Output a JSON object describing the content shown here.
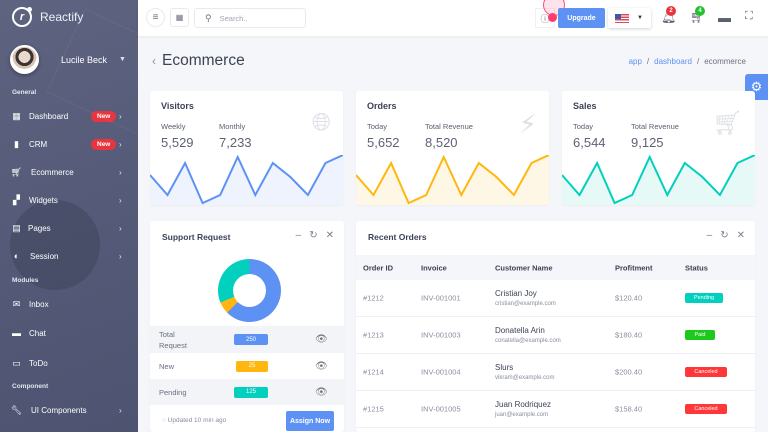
{
  "brand": {
    "name": "Reactify",
    "logo_icon": "reactify-logo-icon"
  },
  "user": {
    "name": "Lucile Beck"
  },
  "sidebar": {
    "sections": [
      {
        "title": "General",
        "items": [
          {
            "label": "Dashboard",
            "icon": "dashboard-icon",
            "badge": "New",
            "arrow": "›"
          },
          {
            "label": "CRM",
            "icon": "crm-icon",
            "badge": "New",
            "arrow": "›"
          },
          {
            "label": "Ecommerce",
            "icon": "cart-icon",
            "badge": "",
            "arrow": "›"
          },
          {
            "label": "Widgets",
            "icon": "widgets-icon",
            "badge": "",
            "arrow": "›"
          },
          {
            "label": "Pages",
            "icon": "pages-icon",
            "badge": "",
            "arrow": "›"
          },
          {
            "label": "Session",
            "icon": "session-icon",
            "badge": "",
            "arrow": "›"
          }
        ]
      },
      {
        "title": "Modules",
        "items": [
          {
            "label": "Inbox",
            "icon": "mail-icon"
          },
          {
            "label": "Chat",
            "icon": "chat-icon"
          },
          {
            "label": "ToDo",
            "icon": "todo-icon"
          }
        ]
      },
      {
        "title": "Component",
        "items": [
          {
            "label": "UI Components",
            "icon": "wrench-icon",
            "arrow": "›"
          }
        ]
      }
    ]
  },
  "topbar": {
    "search_placeholder": "Search..",
    "upgrade_label": "Upgrade",
    "notifications_count": "2",
    "cart_count": "4",
    "colors": {
      "notif_badge": "#e8343e",
      "cart_badge": "#22c22e"
    }
  },
  "page": {
    "title": "Ecommerce",
    "breadcrumb": [
      "app",
      "dashboard",
      "ecommerce"
    ]
  },
  "stats": [
    {
      "title": "Visitors",
      "label1": "Weekly",
      "value1": "5,529",
      "label2": "Monthly",
      "value2": "7,233",
      "icon": "globe-icon",
      "color": "#5d92f4",
      "fill": "#eef3fd"
    },
    {
      "title": "Orders",
      "label1": "Today",
      "value1": "5,652",
      "label2": "Total Revenue",
      "value2": "8,520",
      "icon": "lightning-icon",
      "color": "#ffb70f",
      "fill": "#fff7e6"
    },
    {
      "title": "Sales",
      "label1": "Today",
      "value1": "6,544",
      "label2": "Total Revenue",
      "value2": "9,125",
      "icon": "cart-icon",
      "color": "#00d0bd",
      "fill": "#e6f9f7"
    }
  ],
  "sparkline_points": [
    30,
    10,
    42,
    2,
    10,
    48,
    10,
    42,
    28,
    10,
    42,
    50
  ],
  "support": {
    "title": "Support Request",
    "rows": [
      {
        "label": "Total Request",
        "value": "250",
        "color": "#5d92f4"
      },
      {
        "label": "New",
        "value": "25",
        "color": "#ffb70f"
      },
      {
        "label": "Pending",
        "value": "125",
        "color": "#00d0bd"
      }
    ],
    "updated": "Updated 10 min ago",
    "assign_label": "Assign Now"
  },
  "chart_data": {
    "type": "pie",
    "title": "Support Request",
    "categories": [
      "Total Request",
      "New",
      "Pending"
    ],
    "values": [
      250,
      25,
      125
    ]
  },
  "orders": {
    "title": "Recent Orders",
    "columns": [
      "Order ID",
      "Invoice",
      "Customer Name",
      "Profitment",
      "Status"
    ],
    "rows": [
      {
        "id": "#1212",
        "invoice": "INV-001001",
        "name": "Cristian Joy",
        "email": "cristian@example.com",
        "profit": "$120.40",
        "status": "Pending",
        "status_color": "#00d0bd"
      },
      {
        "id": "#1213",
        "invoice": "INV-001003",
        "name": "Donatella Arin",
        "email": "conatella@example.com",
        "profit": "$180.40",
        "status": "Paid",
        "status_color": "#1ec91e"
      },
      {
        "id": "#1214",
        "invoice": "INV-001004",
        "name": "Slurs",
        "email": "vikram@example.com",
        "profit": "$200.40",
        "status": "Canceled",
        "status_color": "#ff3739"
      },
      {
        "id": "#1215",
        "invoice": "INV-001005",
        "name": "Juan Rodriquez",
        "email": "juan@example.com",
        "profit": "$158.40",
        "status": "Canceled",
        "status_color": "#ff3739"
      }
    ]
  }
}
